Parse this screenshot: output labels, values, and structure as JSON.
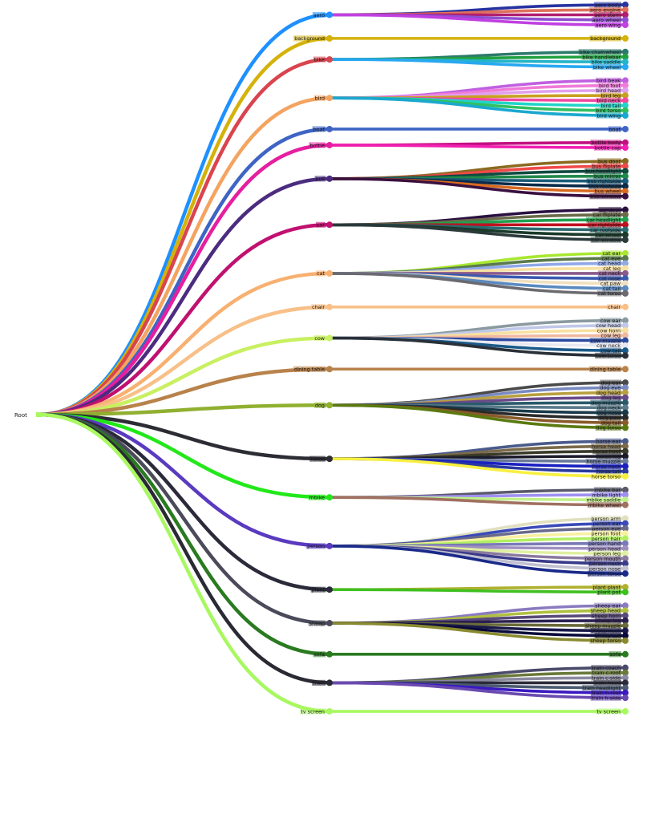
{
  "root": {
    "label": "Root"
  },
  "categories": [
    {
      "name": "aero",
      "color": "#1e90ff",
      "parts": [
        {
          "label": "aero body",
          "color": "#2733a0"
        },
        {
          "label": "aero engine",
          "color": "#e0705a"
        },
        {
          "label": "aero stern",
          "color": "#b01f6e"
        },
        {
          "label": "aero wheel",
          "color": "#8e4fd0"
        },
        {
          "label": "aero wing",
          "color": "#c040e0"
        }
      ]
    },
    {
      "name": "background",
      "color": "#d4b20a",
      "parts": [
        {
          "label": "background",
          "color": "#d4b20a"
        }
      ]
    },
    {
      "name": "bike",
      "color": "#d9444f",
      "parts": [
        {
          "label": "bike chainwheel",
          "color": "#2c7a6c"
        },
        {
          "label": "bike handlebar",
          "color": "#22a040"
        },
        {
          "label": "bike saddle",
          "color": "#24b4c8"
        },
        {
          "label": "bike wheel",
          "color": "#28a8f0"
        }
      ]
    },
    {
      "name": "bird",
      "color": "#f4a460",
      "parts": [
        {
          "label": "bird beak",
          "color": "#c060e0"
        },
        {
          "label": "bird foot",
          "color": "#f07ad8"
        },
        {
          "label": "bird head",
          "color": "#e0a0f0"
        },
        {
          "label": "bird leg",
          "color": "#c8a020"
        },
        {
          "label": "bird neck",
          "color": "#f04aa0"
        },
        {
          "label": "bird tail",
          "color": "#20d4c8"
        },
        {
          "label": "bird torso",
          "color": "#30c060"
        },
        {
          "label": "bird wing",
          "color": "#1aa8d0"
        }
      ]
    },
    {
      "name": "boat",
      "color": "#3e64c4",
      "parts": [
        {
          "label": "boat",
          "color": "#3e64c4"
        }
      ]
    },
    {
      "name": "bottle",
      "color": "#e61ea0",
      "parts": [
        {
          "label": "bottle body",
          "color": "#c21080"
        },
        {
          "label": "bottle cap",
          "color": "#f020b0"
        }
      ]
    },
    {
      "name": "bus",
      "color": "#4b2c7f",
      "parts": [
        {
          "label": "bus door",
          "color": "#8a6a20"
        },
        {
          "label": "bus fliplate",
          "color": "#f04848"
        },
        {
          "label": "bus headlight",
          "color": "#104a40"
        },
        {
          "label": "bus mirror",
          "color": "#20884a"
        },
        {
          "label": "bus rightside",
          "color": "#1a5c7a"
        },
        {
          "label": "bus roofside",
          "color": "#0a2a4a"
        },
        {
          "label": "bus wheel",
          "color": "#d86a20"
        },
        {
          "label": "bus window",
          "color": "#3a1040"
        }
      ]
    },
    {
      "name": "car",
      "color": "#c01070",
      "parts": [
        {
          "label": "car door",
          "color": "#2a1040"
        },
        {
          "label": "car fliplate",
          "color": "#6a6a4a"
        },
        {
          "label": "car headlight",
          "color": "#20a050"
        },
        {
          "label": "car rightside",
          "color": "#c01020"
        },
        {
          "label": "car roofside",
          "color": "#2a6a70"
        },
        {
          "label": "car wheel",
          "color": "#1a3a2a"
        },
        {
          "label": "car window",
          "color": "#2a3a3a"
        }
      ]
    },
    {
      "name": "cat",
      "color": "#f8b070",
      "parts": [
        {
          "label": "cat ear",
          "color": "#a8e830"
        },
        {
          "label": "cat eye",
          "color": "#5a7a4a"
        },
        {
          "label": "cat head",
          "color": "#90a8e8"
        },
        {
          "label": "cat leg",
          "color": "#f8e0a0"
        },
        {
          "label": "cat neck",
          "color": "#8a5a8a"
        },
        {
          "label": "cat nose",
          "color": "#3a5ab0"
        },
        {
          "label": "cat paw",
          "color": "#f0e0c0"
        },
        {
          "label": "cat tail",
          "color": "#5a8ac0"
        },
        {
          "label": "cat torso",
          "color": "#6a6a70"
        }
      ]
    },
    {
      "name": "chair",
      "color": "#f8c088",
      "parts": [
        {
          "label": "chair",
          "color": "#f8c088"
        }
      ]
    },
    {
      "name": "cow",
      "color": "#c8f060",
      "parts": [
        {
          "label": "cow ear",
          "color": "#8a9aa0"
        },
        {
          "label": "cow head",
          "color": "#c0c8e8"
        },
        {
          "label": "cow horn",
          "color": "#f8e0a0"
        },
        {
          "label": "cow leg",
          "color": "#f0b8a0"
        },
        {
          "label": "cow muzzle",
          "color": "#2a4aa0"
        },
        {
          "label": "cow neck",
          "color": "#e8e8f0"
        },
        {
          "label": "cow tail",
          "color": "#1a5a8a"
        },
        {
          "label": "cow torso",
          "color": "#2a3038"
        }
      ]
    },
    {
      "name": "dining table",
      "color": "#b8824a",
      "parts": [
        {
          "label": "dining table",
          "color": "#b8824a"
        }
      ]
    },
    {
      "name": "dog",
      "color": "#90b030",
      "parts": [
        {
          "label": "dog ear",
          "color": "#4a4a4a"
        },
        {
          "label": "dog eye",
          "color": "#7a8ac0"
        },
        {
          "label": "dog head",
          "color": "#b8a040"
        },
        {
          "label": "dog leg",
          "color": "#6a4a8a"
        },
        {
          "label": "dog muzzle",
          "color": "#2a5a6a"
        },
        {
          "label": "dog neck",
          "color": "#5a7a8a"
        },
        {
          "label": "dog nose",
          "color": "#1a3a4a"
        },
        {
          "label": "dog paw",
          "color": "#2a2a2a"
        },
        {
          "label": "dog tail",
          "color": "#8a5a2a"
        },
        {
          "label": "dog torso",
          "color": "#5a7a10"
        }
      ]
    },
    {
      "name": "horse",
      "color": "#2c2c34",
      "parts": [
        {
          "label": "horse ear",
          "color": "#4a5a8a"
        },
        {
          "label": "horse head",
          "color": "#7a6a4a"
        },
        {
          "label": "horse hoof",
          "color": "#3a3a2a"
        },
        {
          "label": "horse leg",
          "color": "#1a1a2a"
        },
        {
          "label": "horse muzzle",
          "color": "#6a7a9a"
        },
        {
          "label": "horse neck",
          "color": "#1a20c0"
        },
        {
          "label": "horse tail",
          "color": "#2a3aa0"
        },
        {
          "label": "horse torso",
          "color": "#f8f040"
        }
      ]
    },
    {
      "name": "mbike",
      "color": "#22e81a",
      "parts": [
        {
          "label": "mbike bar",
          "color": "#5a5a6a"
        },
        {
          "label": "mbike light",
          "color": "#a090f0"
        },
        {
          "label": "mbike saddle",
          "color": "#c0f088"
        },
        {
          "label": "mbike wheel",
          "color": "#a07060"
        }
      ]
    },
    {
      "name": "person",
      "color": "#5a3ac0",
      "parts": [
        {
          "label": "person arm",
          "color": "#e0e0c0"
        },
        {
          "label": "person ear",
          "color": "#3a4ab8"
        },
        {
          "label": "person eye",
          "color": "#6a6a8a"
        },
        {
          "label": "person foot",
          "color": "#f8f0a0"
        },
        {
          "label": "person hair",
          "color": "#b0f060"
        },
        {
          "label": "person hand",
          "color": "#7a7ab8"
        },
        {
          "label": "person head",
          "color": "#a090c0"
        },
        {
          "label": "person leg",
          "color": "#e0f0a0"
        },
        {
          "label": "person mouth",
          "color": "#8a7aa0"
        },
        {
          "label": "person neck",
          "color": "#3a3a8a"
        },
        {
          "label": "person nose",
          "color": "#c0c0d0"
        },
        {
          "label": "person torso",
          "color": "#1a2a8a"
        }
      ]
    },
    {
      "name": "plant",
      "color": "#2a2a3a",
      "parts": [
        {
          "label": "plant plant",
          "color": "#b0b030"
        },
        {
          "label": "plant pot",
          "color": "#40c020"
        }
      ]
    },
    {
      "name": "sheep",
      "color": "#4a4a5a",
      "parts": [
        {
          "label": "sheep ear",
          "color": "#8a7ac0"
        },
        {
          "label": "sheep head",
          "color": "#b0c040"
        },
        {
          "label": "sheep horn",
          "color": "#5a4a7a"
        },
        {
          "label": "sheep leg",
          "color": "#2a2050"
        },
        {
          "label": "sheep muzzle",
          "color": "#6a6a3a"
        },
        {
          "label": "sheep neck",
          "color": "#1a1a4a"
        },
        {
          "label": "sheep tail",
          "color": "#0a0a3a"
        },
        {
          "label": "sheep torso",
          "color": "#8a8a30"
        }
      ]
    },
    {
      "name": "sofa",
      "color": "#2a7a20",
      "parts": [
        {
          "label": "sofa",
          "color": "#2a7a20"
        }
      ]
    },
    {
      "name": "train",
      "color": "#2a2a34",
      "parts": [
        {
          "label": "train coach",
          "color": "#4a4a6a"
        },
        {
          "label": "train c-roof",
          "color": "#6a7a3a"
        },
        {
          "label": "train c-side",
          "color": "#8a8aa0"
        },
        {
          "label": "train head",
          "color": "#2a2a3a"
        },
        {
          "label": "train headlight",
          "color": "#4a5a70"
        },
        {
          "label": "train h-roof",
          "color": "#3a1ac0"
        },
        {
          "label": "train h-side",
          "color": "#6a4ab0"
        }
      ]
    },
    {
      "name": "tv screen",
      "color": "#a8f860",
      "parts": [
        {
          "label": "tv screen",
          "color": "#a8f860"
        }
      ]
    }
  ]
}
